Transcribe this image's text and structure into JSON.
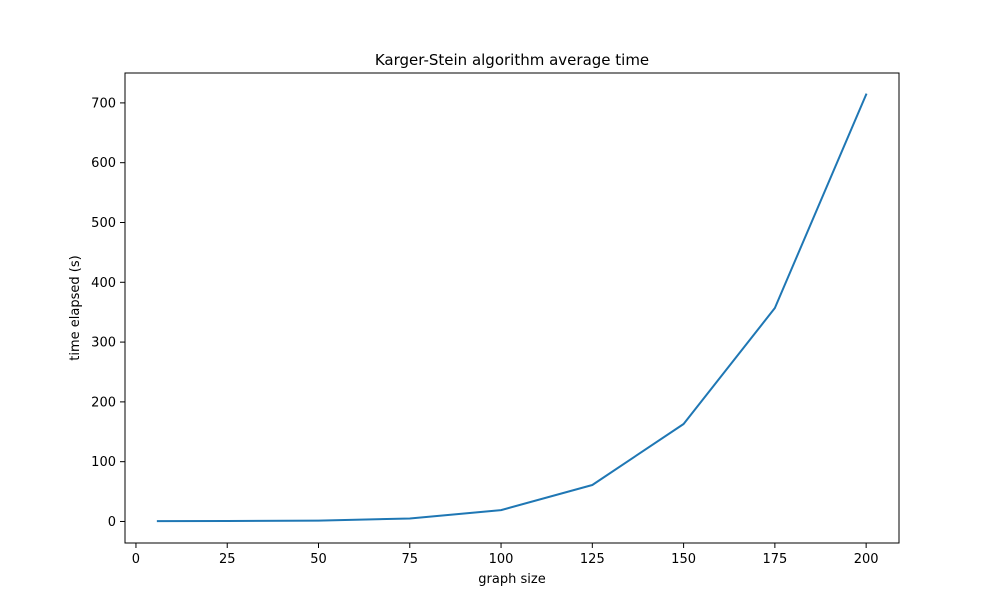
{
  "chart_data": {
    "type": "line",
    "title": "Karger-Stein algorithm average time",
    "xlabel": "graph size",
    "ylabel": "time elapsed (s)",
    "xlim": [
      -3,
      209
    ],
    "ylim": [
      -36,
      750
    ],
    "x_ticks": [
      0,
      25,
      50,
      75,
      100,
      125,
      150,
      175,
      200
    ],
    "y_ticks": [
      0,
      100,
      200,
      300,
      400,
      500,
      600,
      700
    ],
    "grid": false,
    "series": [
      {
        "color": "#1f77b4",
        "x": [
          6,
          25,
          50,
          75,
          100,
          125,
          150,
          175,
          200
        ],
        "y": [
          0.5,
          0.7,
          1.5,
          5,
          19,
          61,
          163,
          357,
          714
        ]
      }
    ]
  }
}
